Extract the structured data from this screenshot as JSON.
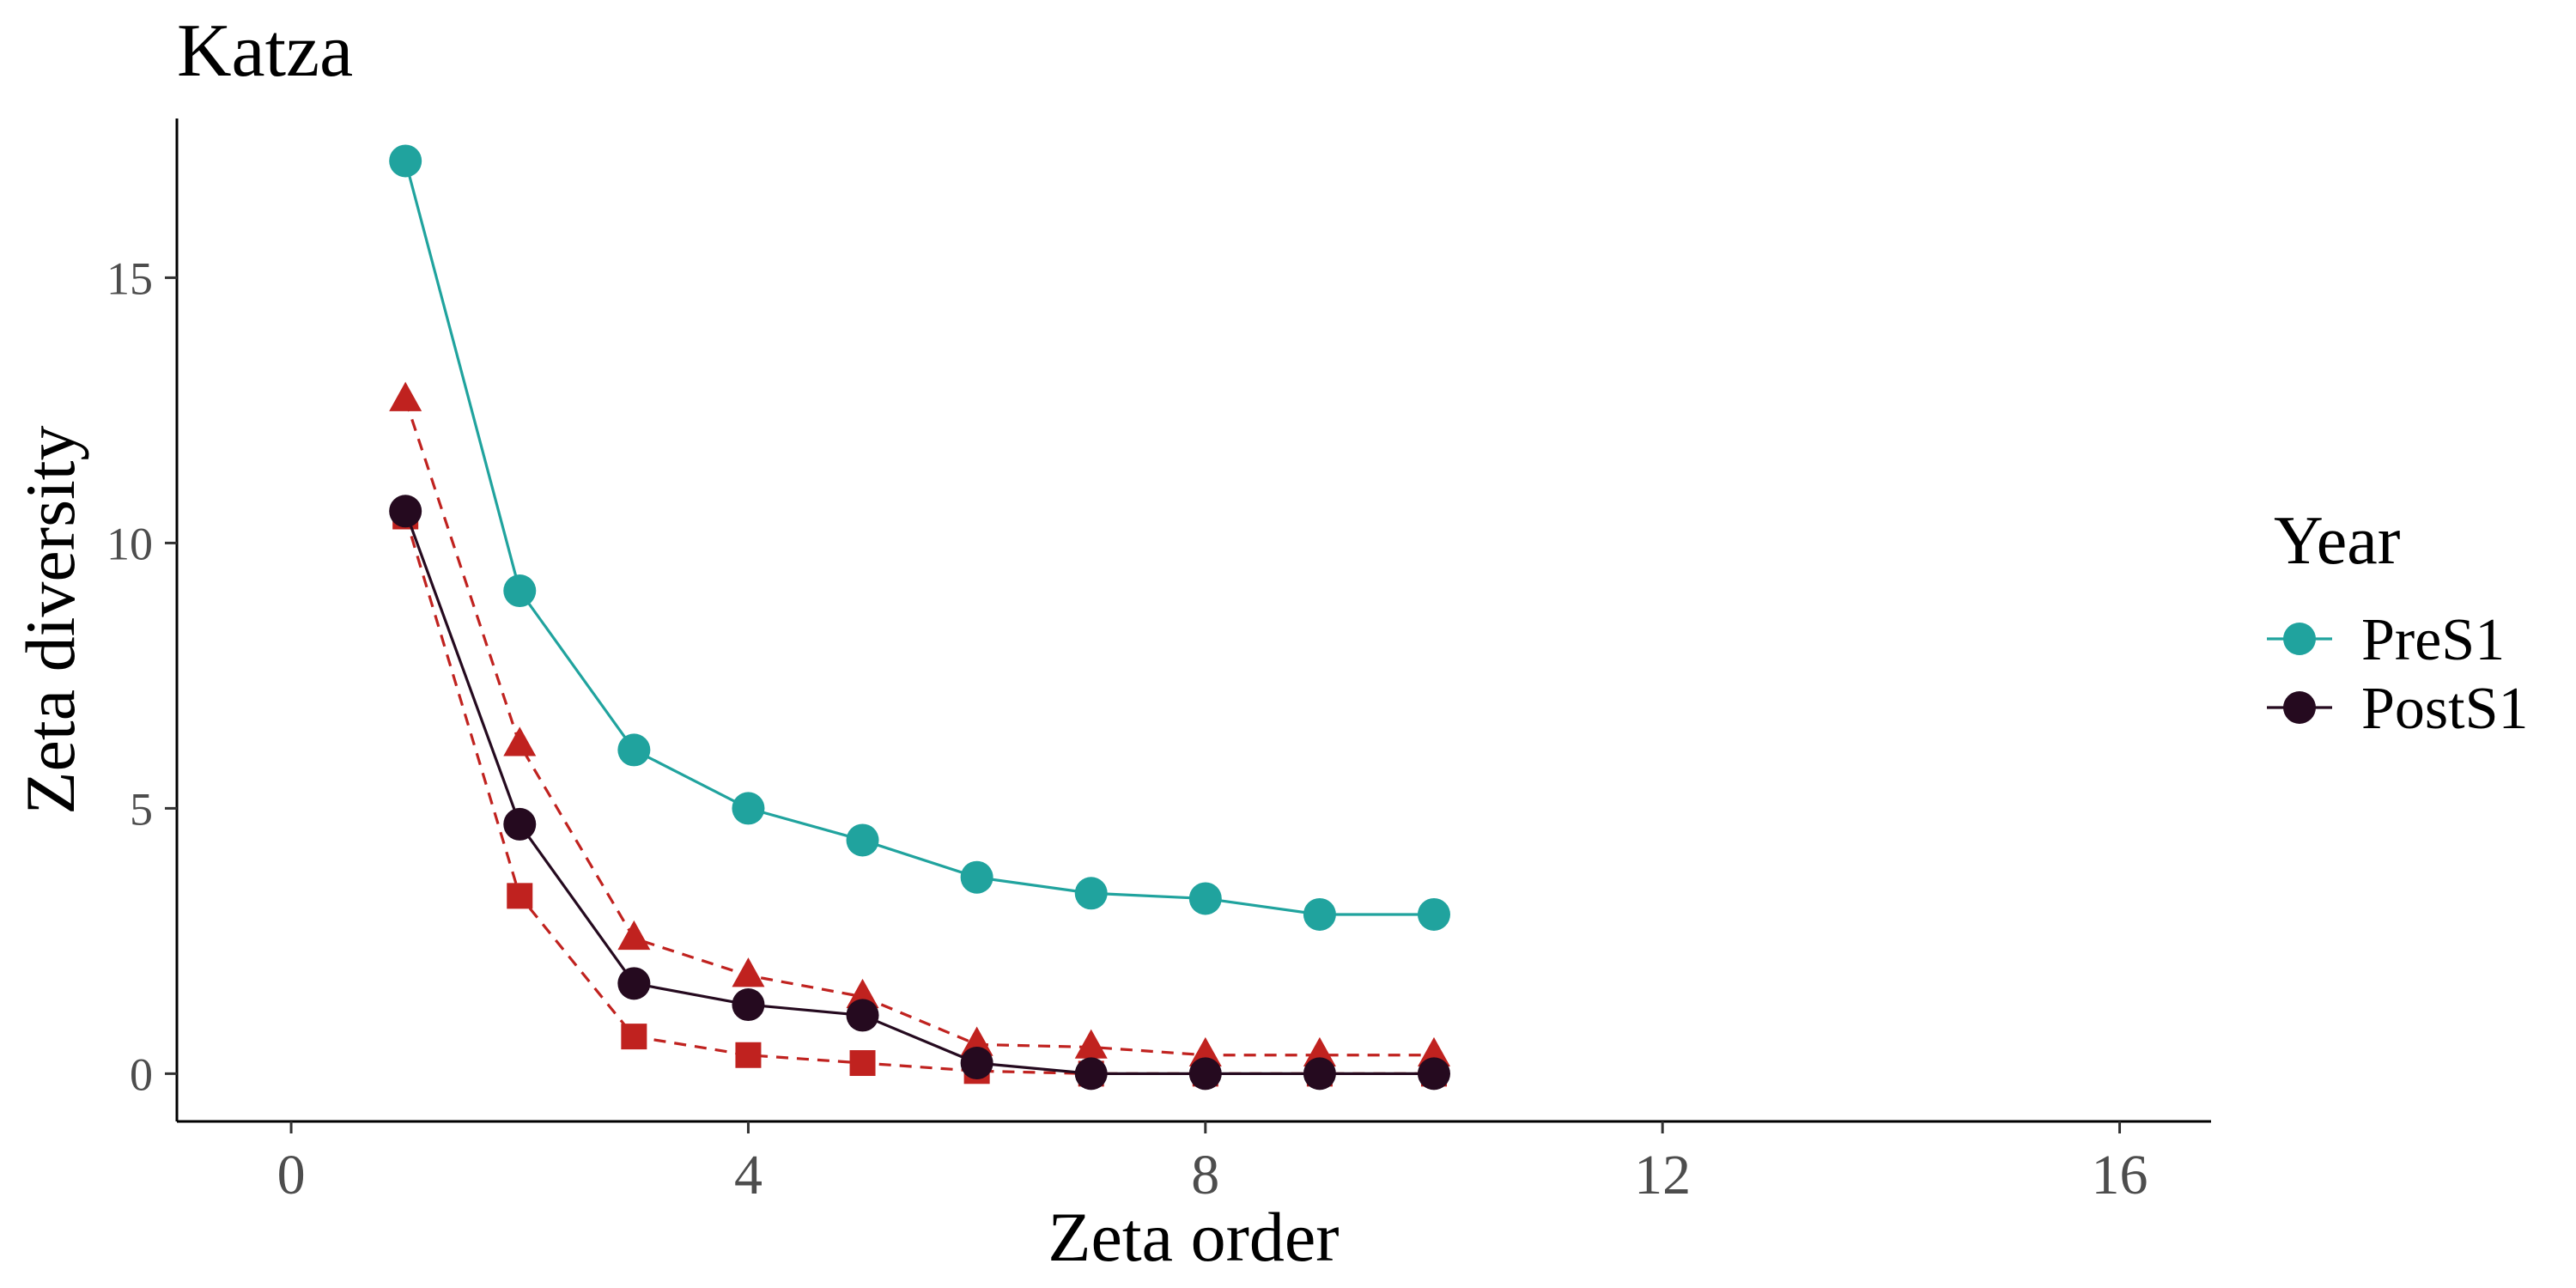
{
  "chart_data": {
    "type": "line",
    "title": "Katza",
    "xlabel": "Zeta order",
    "ylabel": "Zeta diversity",
    "xlim": [
      -1,
      16.8
    ],
    "ylim": [
      -0.9,
      18.0
    ],
    "xticks": [
      "0",
      "4",
      "8",
      "12",
      "16"
    ],
    "yticks": [
      "0",
      "5",
      "10",
      "15"
    ],
    "grid": false,
    "legend": {
      "title": "Year",
      "position": "right",
      "entries": [
        "PreS1",
        "PostS1"
      ]
    },
    "x": [
      1,
      2,
      3,
      4,
      5,
      6,
      7,
      8,
      9,
      10
    ],
    "series": [
      {
        "name": "PreS1",
        "color": "#20a39e",
        "marker": "circle",
        "line": "solid",
        "values": [
          17.2,
          9.1,
          6.1,
          5.0,
          4.4,
          3.7,
          3.4,
          3.3,
          3.0,
          3.0
        ]
      },
      {
        "name": "PostS1",
        "color": "#250a1f",
        "marker": "circle",
        "line": "solid",
        "values": [
          10.6,
          4.7,
          1.7,
          1.3,
          1.1,
          0.2,
          0.0,
          0.0,
          0.0,
          0.0
        ]
      },
      {
        "color": "#c0221f",
        "marker": "triangle",
        "line": "dashed",
        "values": [
          12.7,
          6.2,
          2.55,
          1.85,
          1.45,
          0.55,
          0.5,
          0.35,
          0.35,
          0.35
        ]
      },
      {
        "color": "#c0221f",
        "marker": "square",
        "line": "dashed",
        "values": [
          10.5,
          3.35,
          0.7,
          0.35,
          0.2,
          0.05,
          0.0,
          0.0,
          0.0,
          0.0
        ]
      }
    ]
  }
}
